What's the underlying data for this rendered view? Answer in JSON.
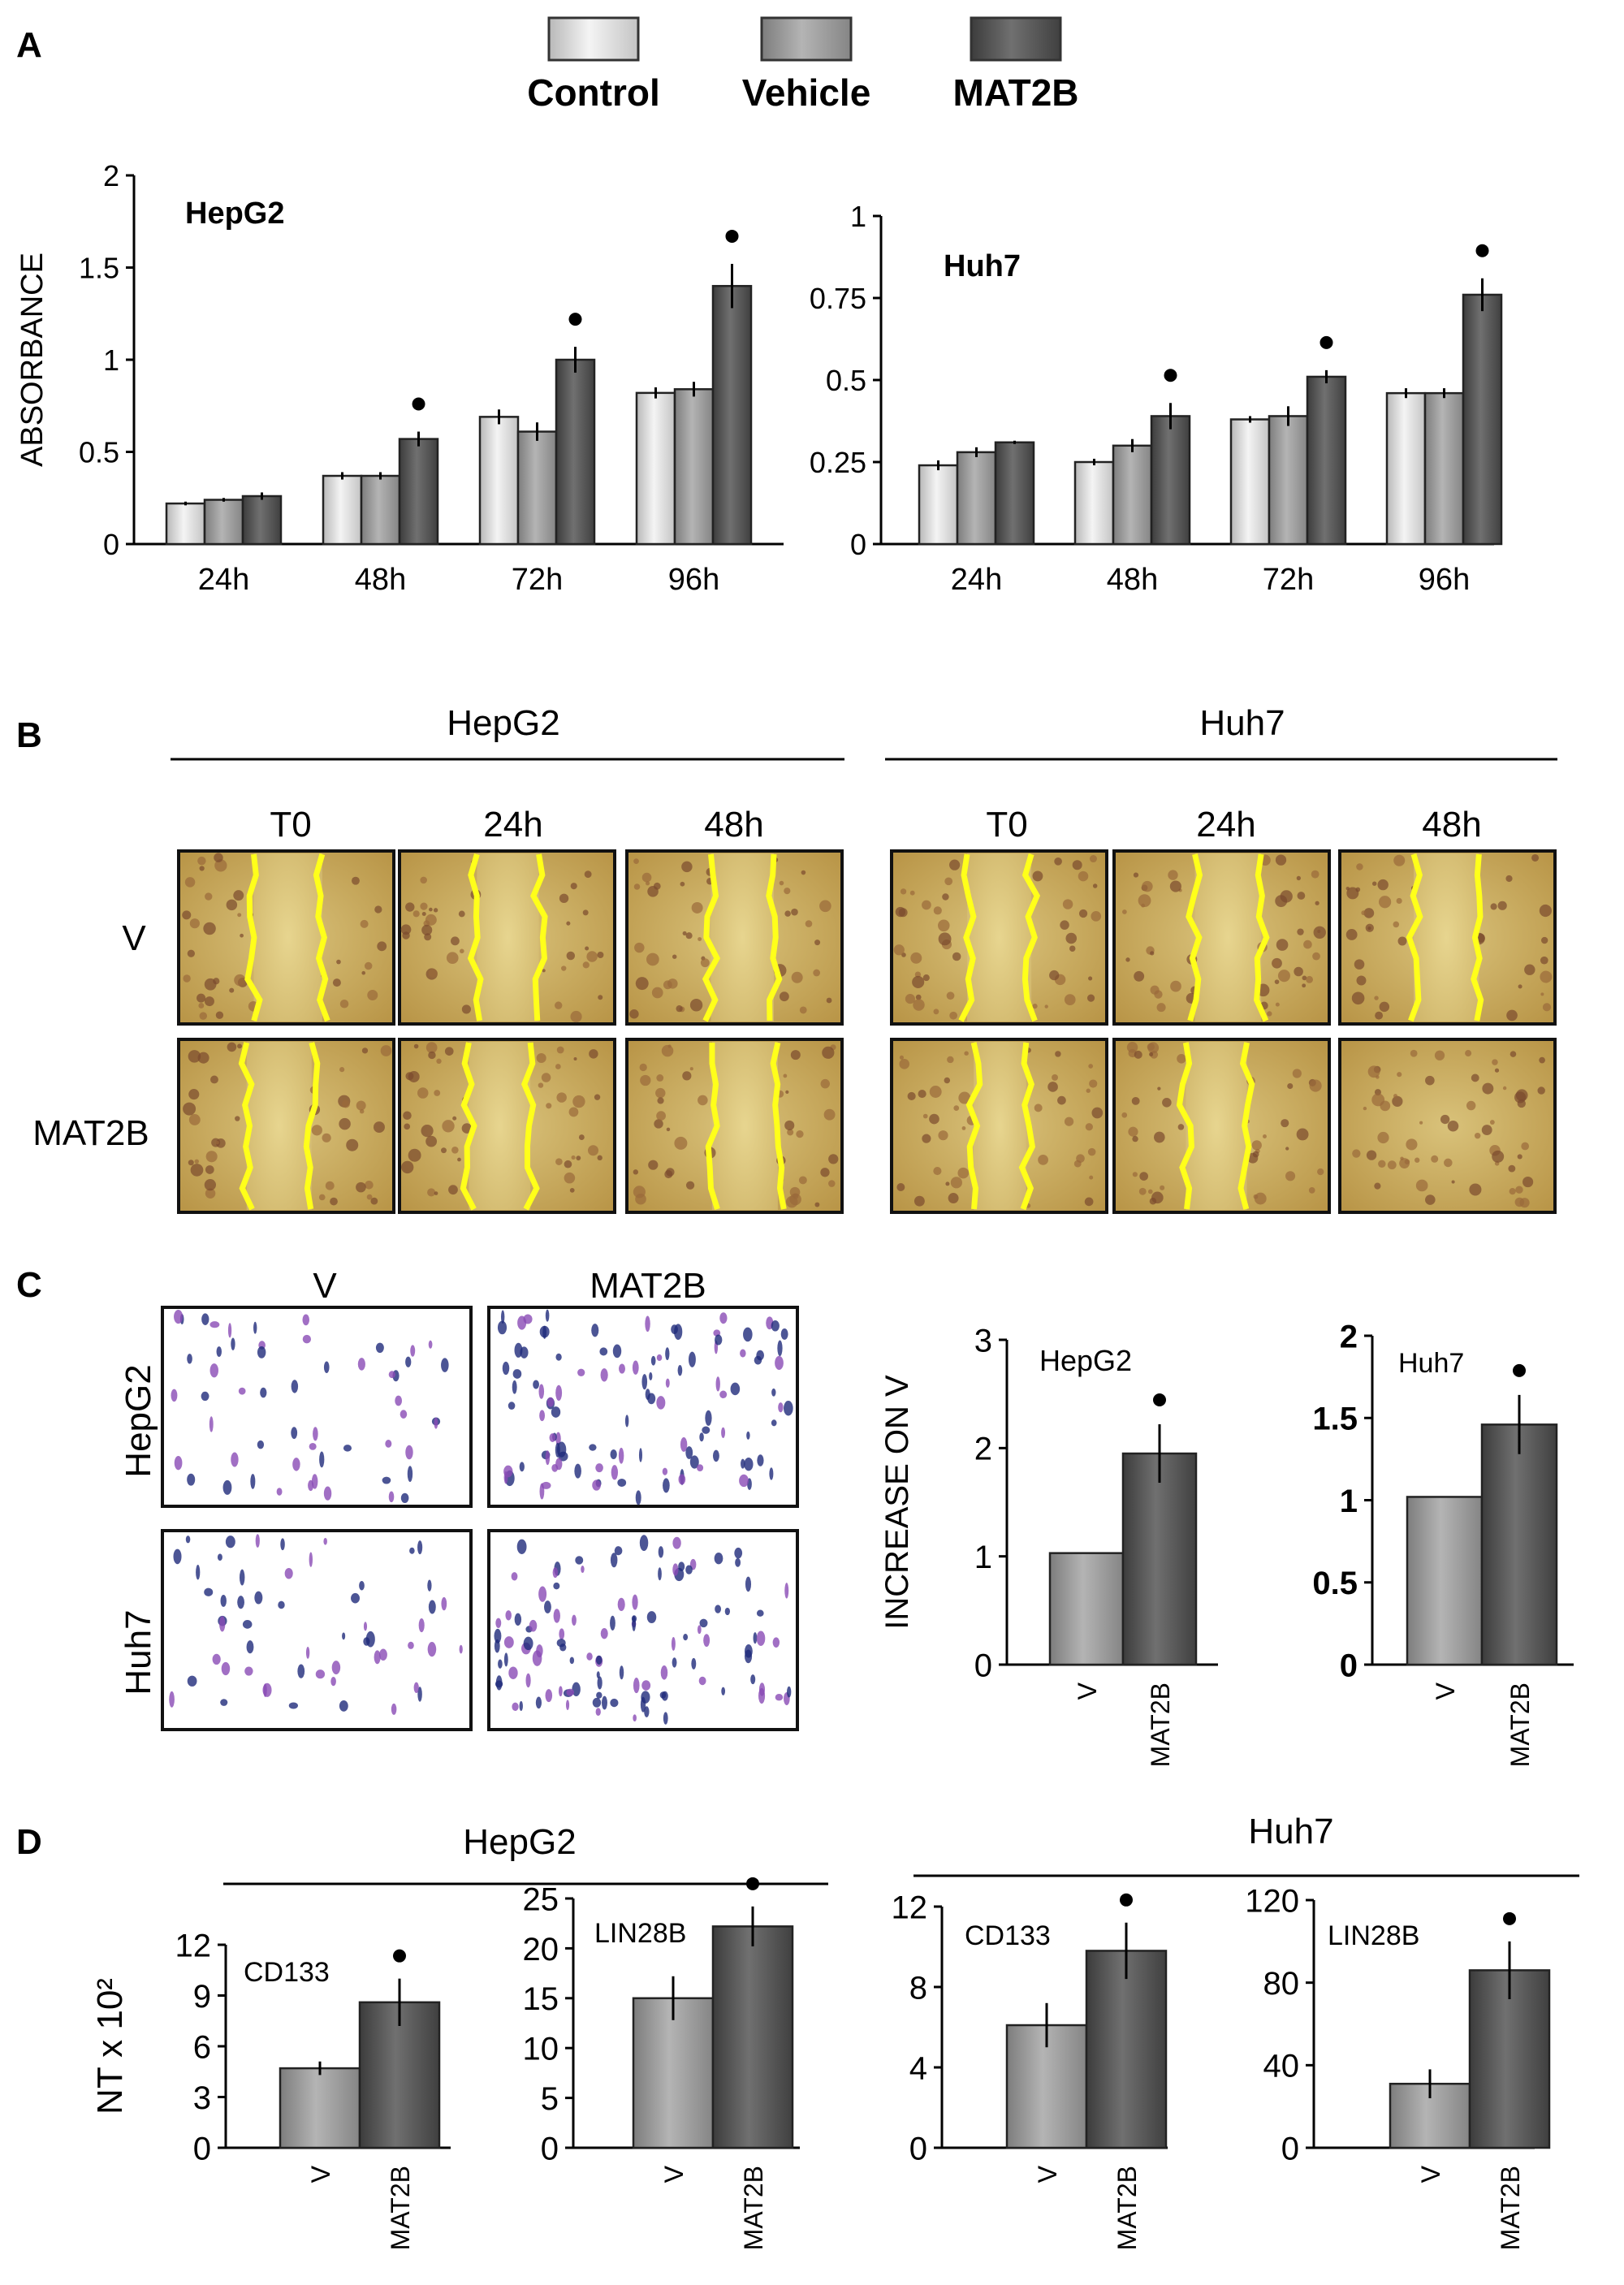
{
  "panel_labels": [
    "A",
    "B",
    "C",
    "D"
  ],
  "legend": [
    {
      "name": "Control",
      "color": "#e6e6e6"
    },
    {
      "name": "Vehicle",
      "color": "#a6a6a6"
    },
    {
      "name": "MAT2B",
      "color": "#595959"
    }
  ],
  "colors": {
    "control": "#e6e6e6",
    "vehicle": "#a6a6a6",
    "mat2b": "#595959",
    "wound_line": "#ffff1a"
  },
  "panelB": {
    "groups": [
      "HepG2",
      "Huh7"
    ],
    "timepoints": [
      "T0",
      "24h",
      "48h"
    ],
    "rows": [
      "V",
      "MAT2B"
    ]
  },
  "panelC": {
    "columns": [
      "V",
      "MAT2B"
    ],
    "rows": [
      "HepG2",
      "Huh7"
    ]
  },
  "panelD": {
    "groups": [
      "HepG2",
      "Huh7"
    ]
  },
  "significance_marker": "•",
  "chart_data": [
    {
      "id": "A-hepg2",
      "type": "bar",
      "title": "HepG2",
      "ylabel": "ABSORBANCE",
      "xlabel": "",
      "categories": [
        "24h",
        "48h",
        "72h",
        "96h"
      ],
      "ylim": [
        0,
        2
      ],
      "yticks": [
        "0",
        "0.5",
        "1",
        "1.5",
        "2"
      ],
      "series": [
        {
          "name": "Control",
          "values": [
            0.22,
            0.37,
            0.69,
            0.82
          ],
          "errors": [
            0.01,
            0.02,
            0.04,
            0.03
          ]
        },
        {
          "name": "Vehicle",
          "values": [
            0.24,
            0.37,
            0.61,
            0.84
          ],
          "errors": [
            0.01,
            0.02,
            0.05,
            0.04
          ]
        },
        {
          "name": "MAT2B",
          "values": [
            0.26,
            0.57,
            1.0,
            1.4
          ],
          "errors": [
            0.02,
            0.04,
            0.07,
            0.12
          ]
        }
      ],
      "significant": [
        "48h",
        "72h",
        "96h"
      ]
    },
    {
      "id": "A-huh7",
      "type": "bar",
      "title": "Huh7",
      "ylabel": "",
      "xlabel": "",
      "categories": [
        "24h",
        "48h",
        "72h",
        "96h"
      ],
      "ylim": [
        0,
        1
      ],
      "yticks": [
        "0",
        "0.25",
        "0.5",
        "0.75",
        "1"
      ],
      "series": [
        {
          "name": "Control",
          "values": [
            0.24,
            0.25,
            0.38,
            0.46
          ],
          "errors": [
            0.015,
            0.01,
            0.01,
            0.015
          ]
        },
        {
          "name": "Vehicle",
          "values": [
            0.28,
            0.3,
            0.39,
            0.46
          ],
          "errors": [
            0.015,
            0.02,
            0.03,
            0.015
          ]
        },
        {
          "name": "MAT2B",
          "values": [
            0.31,
            0.39,
            0.51,
            0.76
          ],
          "errors": [
            0.005,
            0.04,
            0.02,
            0.05
          ]
        }
      ],
      "significant": [
        "48h",
        "72h",
        "96h"
      ]
    },
    {
      "id": "C-hepg2",
      "type": "bar",
      "title": "HepG2",
      "ylabel": "INCREASE ON V",
      "xlabel": "",
      "categories": [
        "V",
        "MAT2B"
      ],
      "ylim": [
        0,
        3
      ],
      "yticks": [
        "0",
        "1",
        "2",
        "3"
      ],
      "values": [
        1.03,
        1.95
      ],
      "errors": [
        0,
        0.27
      ],
      "significant": [
        "MAT2B"
      ]
    },
    {
      "id": "C-huh7",
      "type": "bar",
      "title": "Huh7",
      "ylabel": "",
      "xlabel": "",
      "categories": [
        "V",
        "MAT2B"
      ],
      "ylim": [
        0,
        2
      ],
      "yticks": [
        "0",
        "0.5",
        "1",
        "1.5",
        "2"
      ],
      "values": [
        1.02,
        1.46
      ],
      "errors": [
        0,
        0.18
      ],
      "significant": [
        "MAT2B"
      ]
    },
    {
      "id": "D-hepg2-cd133",
      "type": "bar",
      "title": "CD133",
      "ylabel": "NT x 10²",
      "xlabel": "",
      "categories": [
        "V",
        "MAT2B"
      ],
      "ylim": [
        0,
        12
      ],
      "yticks": [
        "0",
        "3",
        "6",
        "9",
        "12"
      ],
      "values": [
        4.7,
        8.6
      ],
      "errors": [
        0.4,
        1.4
      ],
      "significant": [
        "MAT2B"
      ]
    },
    {
      "id": "D-hepg2-lin28b",
      "type": "bar",
      "title": "LIN28B",
      "ylabel": "",
      "xlabel": "",
      "categories": [
        "V",
        "MAT2B"
      ],
      "ylim": [
        0,
        25
      ],
      "yticks": [
        "0",
        "5",
        "10",
        "15",
        "20",
        "25"
      ],
      "values": [
        15.0,
        22.2
      ],
      "errors": [
        2.2,
        2.0
      ],
      "significant": [
        "MAT2B"
      ]
    },
    {
      "id": "D-huh7-cd133",
      "type": "bar",
      "title": "CD133",
      "ylabel": "",
      "xlabel": "",
      "categories": [
        "V",
        "MAT2B"
      ],
      "ylim": [
        0,
        12
      ],
      "yticks": [
        "0",
        "4",
        "8",
        "12"
      ],
      "values": [
        6.1,
        9.8
      ],
      "errors": [
        1.1,
        1.4
      ],
      "significant": [
        "MAT2B"
      ]
    },
    {
      "id": "D-huh7-lin28b",
      "type": "bar",
      "title": "LIN28B",
      "ylabel": "",
      "xlabel": "",
      "categories": [
        "V",
        "MAT2B"
      ],
      "ylim": [
        0,
        120
      ],
      "yticks": [
        "0",
        "40",
        "80",
        "120"
      ],
      "values": [
        31,
        86
      ],
      "errors": [
        7,
        14
      ],
      "significant": [
        "MAT2B"
      ]
    }
  ]
}
